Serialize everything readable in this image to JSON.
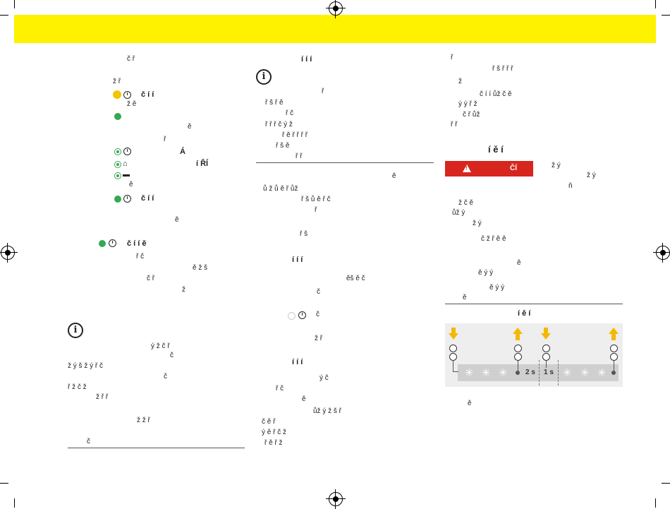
{
  "banner": {
    "color": "#fff200"
  },
  "warning": {
    "label": "ČÍ",
    "color": "#d7261e"
  },
  "diagram": {
    "label_2s": "2 s",
    "label_1s": "1 s"
  },
  "col1": {
    "lines": [
      "č ř",
      "ž ř",
      "č í í",
      "ž ě",
      "ě",
      "ř",
      "Á",
      "í ŘÍ",
      "ě",
      "č í í",
      "ě",
      "č í í ě",
      "ř č",
      "ě ž š",
      "č ř",
      "ž",
      "ý ž č ř",
      "č",
      "ž ý š ž ý ř č",
      "č",
      "ř ž č ž",
      "ž ř ř",
      "ž ž ř",
      "č"
    ]
  },
  "col2": {
    "heading1": "í í í",
    "lines1": [
      "ř",
      "ř š ř ě",
      "ř č",
      "ř ř ř č ý ž",
      "ř ě ř ř ř ř",
      "ř š ě",
      "ř ř"
    ],
    "lines2": [
      "ě",
      "ů ž ů ě ř ůž",
      "ř š ů ě ř č",
      "ř",
      "ř š"
    ],
    "heading2": "í í í",
    "lines3": [
      "ěš ě č",
      "č",
      "č",
      "ž ř"
    ],
    "heading3": "í í í",
    "lines4": [
      "ý č",
      "ř č",
      "ě",
      "ůž ý ž š ř",
      "č ě ř",
      "ý ě ř č ž",
      "ř ě ř ž"
    ]
  },
  "col3": {
    "lines1": [
      "ř",
      "ř š ř ř ř",
      "ž",
      "č í í ůž č ě",
      "ý ý ř ž",
      "č ř ůž",
      "ř ř"
    ],
    "heading": "í ě í",
    "lines2": [
      "ž ý",
      "ž ý",
      "ň",
      "ž č ě",
      "ůž ý",
      "ž ý",
      "č ž ř ě ě",
      "ě",
      "ě ý ý",
      "ě ý ý",
      "ě"
    ],
    "figure_title": "í ě í",
    "caption": "ě"
  }
}
